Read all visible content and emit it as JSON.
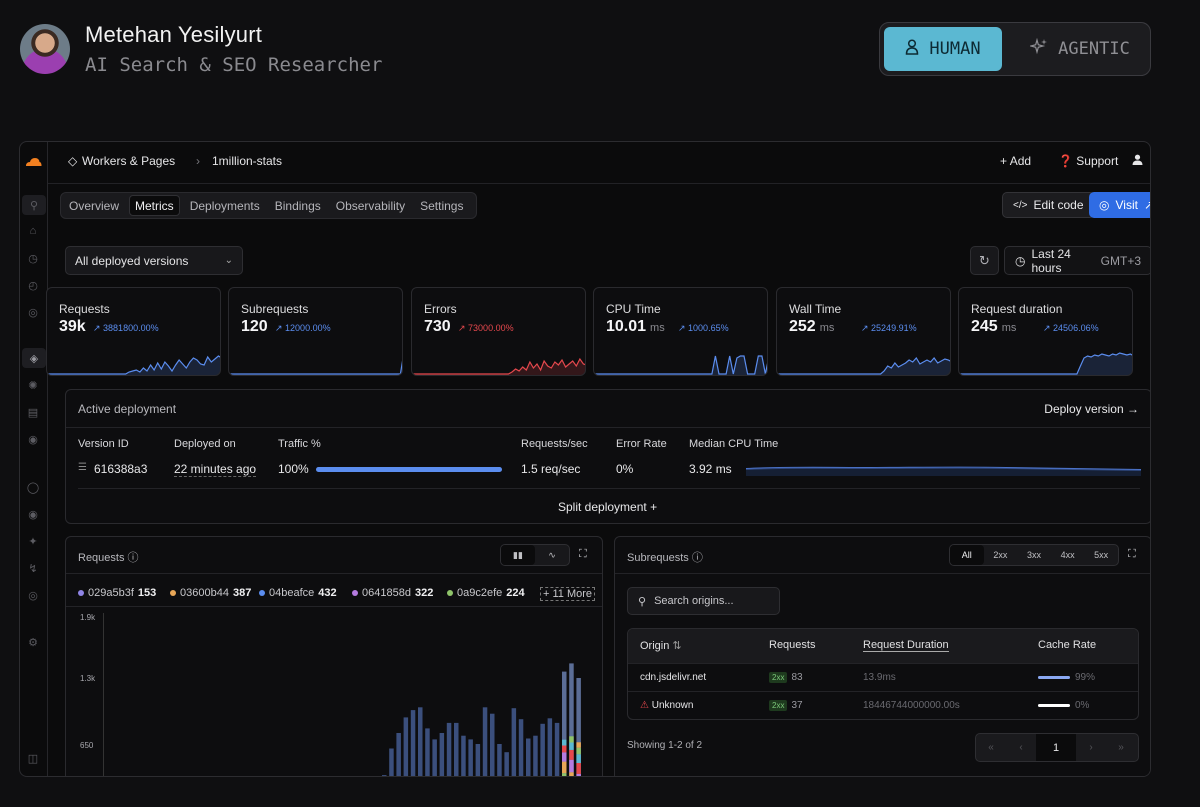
{
  "profile": {
    "name": "Metehan Yesilyurt",
    "role": "AI Search & SEO Researcher"
  },
  "mode_toggle": {
    "human": "HUMAN",
    "agentic": "AGENTIC"
  },
  "breadcrumb": {
    "section": "Workers & Pages",
    "project": "1million-stats"
  },
  "topbar": {
    "add": "Add",
    "support": "Support"
  },
  "tabs": [
    "Overview",
    "Metrics",
    "Deployments",
    "Bindings",
    "Observability",
    "Settings"
  ],
  "actions": {
    "edit_code": "Edit code",
    "visit": "Visit"
  },
  "filters": {
    "versions": "All deployed versions",
    "range": "Last 24 hours",
    "timezone": "GMT+3"
  },
  "metrics": [
    {
      "title": "Requests",
      "value": "39k",
      "unit": "",
      "delta": "3881800.00%",
      "color": "#5b8def"
    },
    {
      "title": "Subrequests",
      "value": "120",
      "unit": "",
      "delta": "12000.00%",
      "color": "#5b8def"
    },
    {
      "title": "Errors",
      "value": "730",
      "unit": "",
      "delta": "73000.00%",
      "color": "#e5484d"
    },
    {
      "title": "CPU Time",
      "value": "10.01",
      "unit": "ms",
      "delta": "1000.65%",
      "color": "#5b8def"
    },
    {
      "title": "Wall Time",
      "value": "252",
      "unit": "ms",
      "delta": "25249.91%",
      "color": "#5b8def"
    },
    {
      "title": "Request duration",
      "value": "245",
      "unit": "ms",
      "delta": "24506.06%",
      "color": "#5b8def"
    }
  ],
  "deployment": {
    "title": "Active deployment",
    "deploy_version": "Deploy version",
    "headers": {
      "version": "Version ID",
      "deployed": "Deployed on",
      "traffic": "Traffic %",
      "rps": "Requests/sec",
      "error_rate": "Error Rate",
      "cpu": "Median CPU Time"
    },
    "row": {
      "version": "616388a3",
      "deployed": "22 minutes ago",
      "traffic": "100%",
      "traffic_fill": 1.0,
      "rps": "1.5 req/sec",
      "error_rate": "0%",
      "cpu": "3.92 ms"
    },
    "split": "Split deployment"
  },
  "requests_chart": {
    "title": "Requests",
    "legend": [
      {
        "id": "029a5b3f",
        "count": "153",
        "color": "#8f84e6"
      },
      {
        "id": "03600b44",
        "count": "387",
        "color": "#e8a657"
      },
      {
        "id": "04beafce",
        "count": "432",
        "color": "#5b8def"
      },
      {
        "id": "0641858d",
        "count": "322",
        "color": "#b57be0"
      },
      {
        "id": "0a9c2efe",
        "count": "224",
        "color": "#8fc46a"
      }
    ],
    "more": "11 More"
  },
  "chart_data": {
    "type": "bar",
    "title": "Requests",
    "yticks": [
      "1.9k",
      "1.3k",
      "650"
    ],
    "ylim": [
      0,
      1900
    ],
    "values": [
      130,
      420,
      590,
      760,
      840,
      870,
      640,
      520,
      590,
      700,
      700,
      560,
      520,
      470,
      870,
      800,
      470,
      380,
      860,
      740,
      530,
      560,
      690,
      750,
      700,
      1260,
      1350,
      1190
    ],
    "grid": false
  },
  "subrequests": {
    "title": "Subrequests",
    "filters": [
      "All",
      "2xx",
      "3xx",
      "4xx",
      "5xx"
    ],
    "search_placeholder": "Search origins...",
    "columns": [
      "Origin",
      "Requests",
      "Request Duration",
      "Cache Rate"
    ],
    "rows": [
      {
        "origin": "cdn.jsdelivr.net",
        "status": "2xx",
        "requests": "83",
        "duration": "13.9ms",
        "cache": "99%",
        "cache_fill": 0.99,
        "cache_color": "#8aa8f2"
      },
      {
        "origin": "Unknown",
        "status": "2xx",
        "requests": "37",
        "duration": "18446744000000.00s",
        "cache": "0%",
        "cache_fill": 0.0,
        "cache_color": "#ffffff"
      }
    ],
    "showing": "Showing 1-2 of 2",
    "page": "1"
  }
}
